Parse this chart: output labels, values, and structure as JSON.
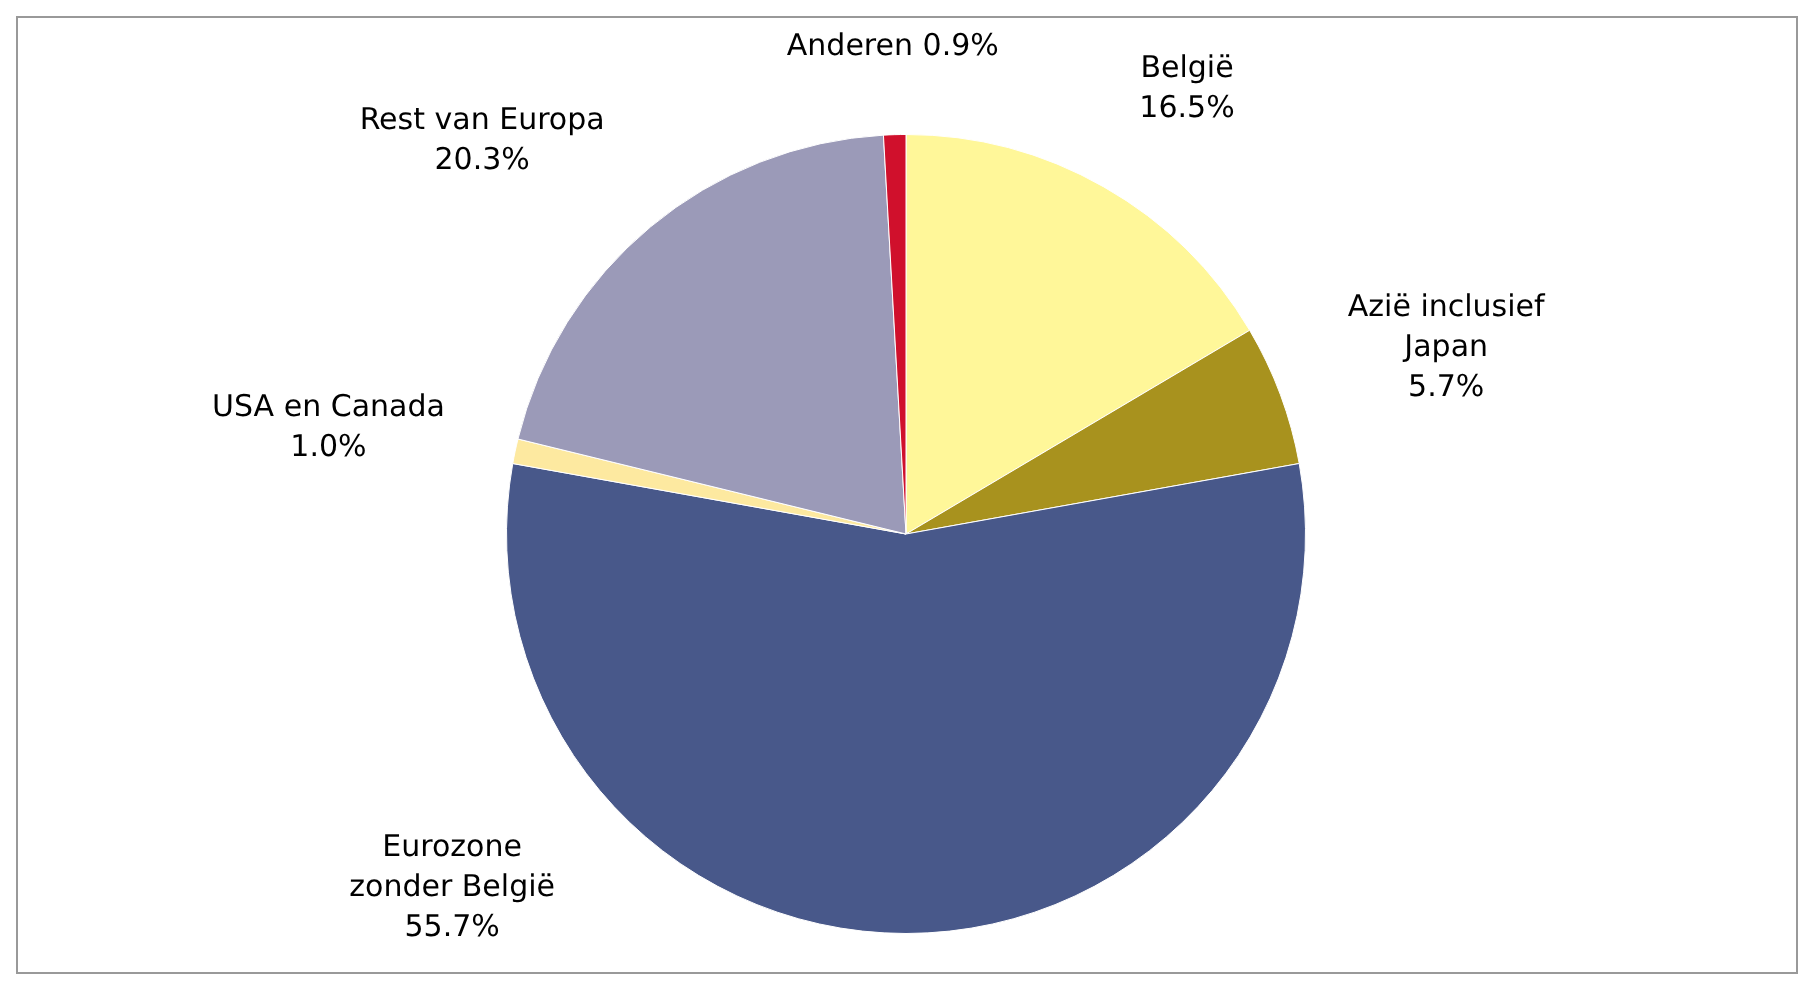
{
  "chart_data": {
    "type": "pie",
    "categories": [
      "België",
      "Azië inclusief Japan",
      "Eurozone zonder België",
      "USA en Canada",
      "Rest van Europa",
      "Anderen"
    ],
    "values": [
      16.5,
      5.7,
      55.7,
      1.0,
      20.3,
      0.9
    ],
    "colors": [
      "#fff799",
      "#a8921e",
      "#48588a",
      "#fde9a0",
      "#9b9ab8",
      "#d0102c"
    ],
    "value_labels": [
      "16.5%",
      "5.7%",
      "55.7%",
      "1.0%",
      "20.3%",
      "0.9%"
    ],
    "legend": false
  }
}
